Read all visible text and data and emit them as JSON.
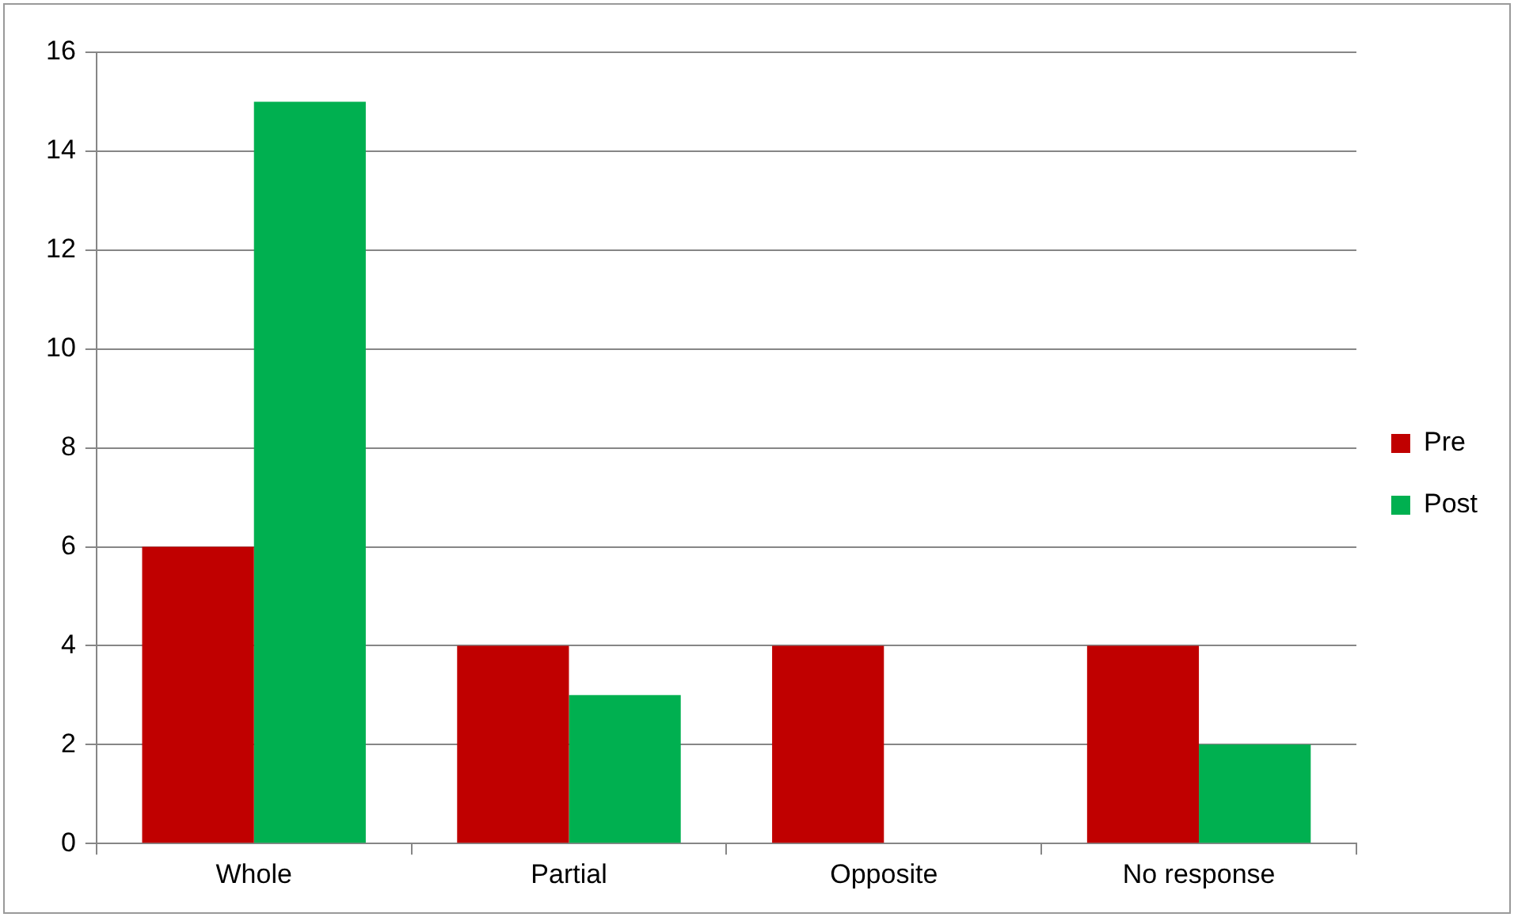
{
  "chart_data": {
    "type": "bar",
    "categories": [
      "Whole",
      "Partial",
      "Opposite",
      "No response"
    ],
    "series": [
      {
        "name": "Pre",
        "color": "#c00000",
        "values": [
          6,
          4,
          4,
          4
        ]
      },
      {
        "name": "Post",
        "color": "#00b050",
        "values": [
          15,
          3,
          0,
          2
        ]
      }
    ],
    "ylim": [
      0,
      16
    ],
    "yticks": [
      0,
      2,
      4,
      6,
      8,
      10,
      12,
      14,
      16
    ],
    "grid": "y",
    "legend": "right"
  }
}
